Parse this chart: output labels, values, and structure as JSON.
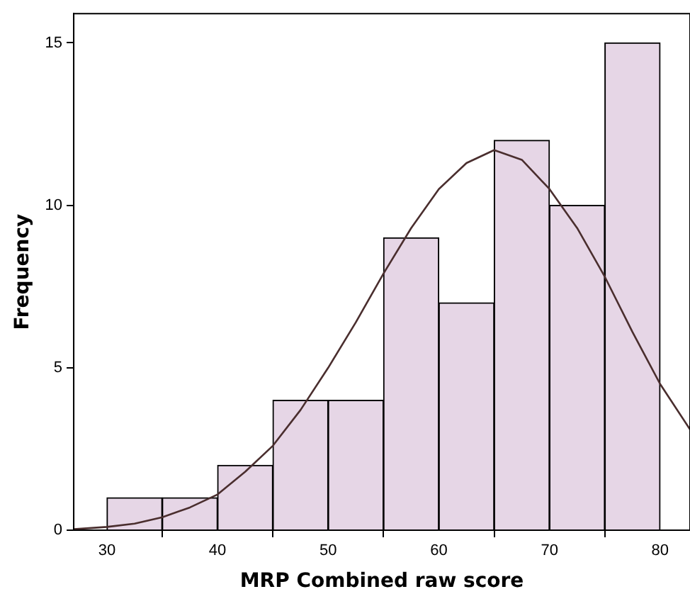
{
  "chart_data": {
    "type": "histogram",
    "xlabel": "MRP Combined raw score",
    "ylabel": "Frequency",
    "bins": [
      30,
      35,
      40,
      45,
      50,
      55,
      60,
      65,
      70,
      75,
      80
    ],
    "values": [
      1,
      1,
      2,
      4,
      4,
      9,
      7,
      12,
      10,
      15
    ],
    "color": "#e6d6e6",
    "series": [
      {
        "type": "line",
        "color": "#4a2e2e",
        "x": [
          27,
          30,
          32.5,
          35,
          37.5,
          40,
          42.5,
          45,
          47.5,
          50,
          52.5,
          55,
          57.5,
          60,
          62.5,
          65,
          67.5,
          70,
          72.5,
          75,
          77.5,
          80,
          82.7
        ],
        "values": [
          0.03,
          0.1,
          0.2,
          0.4,
          0.7,
          1.1,
          1.8,
          2.6,
          3.7,
          5,
          6.4,
          7.9,
          9.3,
          10.5,
          11.3,
          11.7,
          11.4,
          10.5,
          9.3,
          7.8,
          6.1,
          4.5,
          3.1
        ]
      }
    ],
    "xlim": [
      27,
      82.7
    ],
    "ylim": [
      0,
      15.9
    ],
    "xticks": [
      30,
      40,
      50,
      60,
      70,
      80
    ],
    "yticks": [
      0,
      5,
      10,
      15
    ],
    "grid": false,
    "legend": false,
    "marker": "none",
    "line_style": "solid"
  }
}
